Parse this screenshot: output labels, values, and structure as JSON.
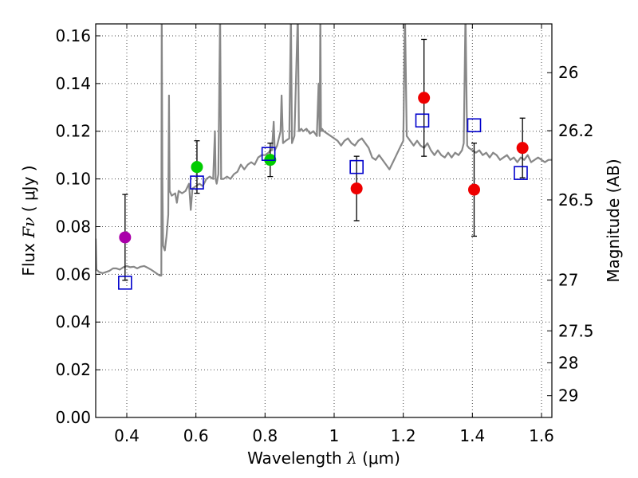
{
  "chart_data": {
    "type": "scatter",
    "xlabel_prefix": "Wavelength",
    "xlabel_symbol": "λ",
    "xlabel_unit": "(μm)",
    "ylabel_prefix": "Flux",
    "ylabel_symbol": "Fν",
    "ylabel_unit": "( μJy )",
    "ylabel_right": "Magnitude (AB)",
    "xlim": [
      0.31,
      1.63
    ],
    "ylim": [
      0.0,
      0.165
    ],
    "x_ticks": [
      0.4,
      0.6,
      0.8,
      1.0,
      1.2,
      1.4,
      1.6
    ],
    "x_tick_labels": [
      "0.4",
      "0.6",
      "0.8",
      "1",
      "1.2",
      "1.4",
      "1.6"
    ],
    "y_ticks": [
      0.0,
      0.02,
      0.04,
      0.06,
      0.08,
      0.1,
      0.12,
      0.14,
      0.16
    ],
    "y_tick_labels": [
      "0.00",
      "0.02",
      "0.04",
      "0.06",
      "0.08",
      "0.10",
      "0.12",
      "0.14",
      "0.16"
    ],
    "right_ticks": [
      {
        "label": "26",
        "mag": 26.0
      },
      {
        "label": "26.2",
        "mag": 26.2
      },
      {
        "label": "26.5",
        "mag": 26.5
      },
      {
        "label": "27",
        "mag": 27.0
      },
      {
        "label": "27.5",
        "mag": 27.5
      },
      {
        "label": "28",
        "mag": 28.0
      },
      {
        "label": "29",
        "mag": 29.0
      }
    ],
    "grid": true,
    "colors": {
      "purple": "#aa00aa",
      "green": "#00cc00",
      "red": "#ee0000",
      "model": "#888888",
      "square": "#0000cc"
    },
    "observed": [
      {
        "x": 0.395,
        "y": 0.0755,
        "err": 0.018,
        "color": "purple"
      },
      {
        "x": 0.603,
        "y": 0.105,
        "err": 0.011,
        "color": "green"
      },
      {
        "x": 0.815,
        "y": 0.108,
        "err": 0.007,
        "color": "green"
      },
      {
        "x": 1.065,
        "y": 0.096,
        "err": 0.0135,
        "color": "red"
      },
      {
        "x": 1.26,
        "y": 0.134,
        "err": 0.0245,
        "color": "red"
      },
      {
        "x": 1.405,
        "y": 0.0955,
        "err": 0.0195,
        "color": "red"
      },
      {
        "x": 1.545,
        "y": 0.113,
        "err": 0.0125,
        "color": "red"
      }
    ],
    "model_photometry": [
      {
        "x": 0.395,
        "y": 0.0565
      },
      {
        "x": 0.603,
        "y": 0.0985
      },
      {
        "x": 0.81,
        "y": 0.1105
      },
      {
        "x": 1.065,
        "y": 0.105
      },
      {
        "x": 1.255,
        "y": 0.1245
      },
      {
        "x": 1.405,
        "y": 0.1225
      },
      {
        "x": 1.54,
        "y": 0.1025
      }
    ],
    "model_spectrum": [
      [
        0.31,
        0.075
      ],
      [
        0.312,
        0.062
      ],
      [
        0.32,
        0.061
      ],
      [
        0.33,
        0.0605
      ],
      [
        0.34,
        0.061
      ],
      [
        0.35,
        0.0615
      ],
      [
        0.36,
        0.0625
      ],
      [
        0.37,
        0.0625
      ],
      [
        0.38,
        0.062
      ],
      [
        0.39,
        0.063
      ],
      [
        0.4,
        0.0635
      ],
      [
        0.41,
        0.063
      ],
      [
        0.42,
        0.0632
      ],
      [
        0.43,
        0.0625
      ],
      [
        0.44,
        0.0632
      ],
      [
        0.45,
        0.0635
      ],
      [
        0.46,
        0.0628
      ],
      [
        0.47,
        0.062
      ],
      [
        0.48,
        0.061
      ],
      [
        0.49,
        0.06
      ],
      [
        0.496,
        0.0595
      ],
      [
        0.5,
        0.0595
      ],
      [
        0.501,
        0.17
      ],
      [
        0.503,
        0.1
      ],
      [
        0.505,
        0.072
      ],
      [
        0.51,
        0.07
      ],
      [
        0.515,
        0.076
      ],
      [
        0.52,
        0.085
      ],
      [
        0.522,
        0.135
      ],
      [
        0.524,
        0.095
      ],
      [
        0.53,
        0.093
      ],
      [
        0.54,
        0.094
      ],
      [
        0.545,
        0.09
      ],
      [
        0.55,
        0.095
      ],
      [
        0.56,
        0.094
      ],
      [
        0.57,
        0.095
      ],
      [
        0.58,
        0.098
      ],
      [
        0.585,
        0.087
      ],
      [
        0.59,
        0.096
      ],
      [
        0.6,
        0.097
      ],
      [
        0.61,
        0.098
      ],
      [
        0.62,
        0.097
      ],
      [
        0.63,
        0.1
      ],
      [
        0.64,
        0.101
      ],
      [
        0.65,
        0.1
      ],
      [
        0.655,
        0.12
      ],
      [
        0.657,
        0.1
      ],
      [
        0.66,
        0.098
      ],
      [
        0.665,
        0.102
      ],
      [
        0.67,
        0.17
      ],
      [
        0.673,
        0.1
      ],
      [
        0.68,
        0.1
      ],
      [
        0.69,
        0.101
      ],
      [
        0.7,
        0.1
      ],
      [
        0.71,
        0.102
      ],
      [
        0.72,
        0.103
      ],
      [
        0.73,
        0.106
      ],
      [
        0.74,
        0.104
      ],
      [
        0.75,
        0.106
      ],
      [
        0.76,
        0.107
      ],
      [
        0.77,
        0.106
      ],
      [
        0.78,
        0.109
      ],
      [
        0.79,
        0.11
      ],
      [
        0.8,
        0.11
      ],
      [
        0.81,
        0.111
      ],
      [
        0.815,
        0.112
      ],
      [
        0.82,
        0.112
      ],
      [
        0.825,
        0.124
      ],
      [
        0.828,
        0.112
      ],
      [
        0.835,
        0.114
      ],
      [
        0.845,
        0.12
      ],
      [
        0.848,
        0.135
      ],
      [
        0.852,
        0.115
      ],
      [
        0.86,
        0.116
      ],
      [
        0.87,
        0.117
      ],
      [
        0.875,
        0.17
      ],
      [
        0.878,
        0.115
      ],
      [
        0.885,
        0.118
      ],
      [
        0.895,
        0.17
      ],
      [
        0.898,
        0.12
      ],
      [
        0.905,
        0.121
      ],
      [
        0.91,
        0.12
      ],
      [
        0.92,
        0.121
      ],
      [
        0.93,
        0.119
      ],
      [
        0.94,
        0.12
      ],
      [
        0.95,
        0.118
      ],
      [
        0.955,
        0.14
      ],
      [
        0.958,
        0.118
      ],
      [
        0.96,
        0.17
      ],
      [
        0.962,
        0.12
      ],
      [
        0.965,
        0.121
      ],
      [
        0.97,
        0.12
      ],
      [
        0.98,
        0.119
      ],
      [
        0.99,
        0.118
      ],
      [
        1.0,
        0.117
      ],
      [
        1.01,
        0.116
      ],
      [
        1.02,
        0.114
      ],
      [
        1.03,
        0.116
      ],
      [
        1.04,
        0.117
      ],
      [
        1.05,
        0.115
      ],
      [
        1.06,
        0.114
      ],
      [
        1.07,
        0.116
      ],
      [
        1.08,
        0.117
      ],
      [
        1.09,
        0.115
      ],
      [
        1.1,
        0.113
      ],
      [
        1.11,
        0.109
      ],
      [
        1.12,
        0.108
      ],
      [
        1.13,
        0.11
      ],
      [
        1.14,
        0.108
      ],
      [
        1.15,
        0.106
      ],
      [
        1.16,
        0.104
      ],
      [
        1.17,
        0.107
      ],
      [
        1.18,
        0.11
      ],
      [
        1.19,
        0.113
      ],
      [
        1.2,
        0.116
      ],
      [
        1.205,
        0.17
      ],
      [
        1.21,
        0.118
      ],
      [
        1.22,
        0.116
      ],
      [
        1.23,
        0.114
      ],
      [
        1.24,
        0.116
      ],
      [
        1.25,
        0.114
      ],
      [
        1.26,
        0.113
      ],
      [
        1.27,
        0.115
      ],
      [
        1.28,
        0.112
      ],
      [
        1.29,
        0.11
      ],
      [
        1.3,
        0.112
      ],
      [
        1.31,
        0.11
      ],
      [
        1.32,
        0.109
      ],
      [
        1.33,
        0.111
      ],
      [
        1.34,
        0.109
      ],
      [
        1.35,
        0.111
      ],
      [
        1.36,
        0.11
      ],
      [
        1.37,
        0.112
      ],
      [
        1.375,
        0.115
      ],
      [
        1.38,
        0.17
      ],
      [
        1.385,
        0.114
      ],
      [
        1.39,
        0.113
      ],
      [
        1.4,
        0.112
      ],
      [
        1.41,
        0.111
      ],
      [
        1.42,
        0.112
      ],
      [
        1.43,
        0.11
      ],
      [
        1.44,
        0.111
      ],
      [
        1.45,
        0.109
      ],
      [
        1.46,
        0.111
      ],
      [
        1.47,
        0.11
      ],
      [
        1.48,
        0.108
      ],
      [
        1.49,
        0.109
      ],
      [
        1.5,
        0.11
      ],
      [
        1.51,
        0.108
      ],
      [
        1.52,
        0.109
      ],
      [
        1.53,
        0.107
      ],
      [
        1.54,
        0.109
      ],
      [
        1.55,
        0.108
      ],
      [
        1.56,
        0.11
      ],
      [
        1.57,
        0.107
      ],
      [
        1.58,
        0.108
      ],
      [
        1.59,
        0.109
      ],
      [
        1.6,
        0.108
      ],
      [
        1.61,
        0.107
      ],
      [
        1.62,
        0.108
      ],
      [
        1.63,
        0.108
      ]
    ]
  }
}
